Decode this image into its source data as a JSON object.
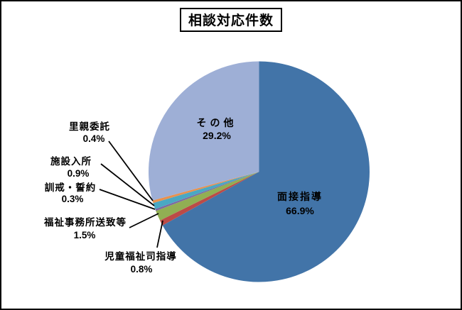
{
  "title": "相談対応件数",
  "chart_data": {
    "type": "pie",
    "title": "相談対応件数",
    "start_angle_deg": 0,
    "direction": "clockwise",
    "legend_position": "none",
    "background": "#ffffff",
    "border_color": "#000000",
    "segments": [
      {
        "label": "面接指導",
        "value": 66.9,
        "display": "66.9%",
        "color": "#4274A8",
        "label_placement": "inside"
      },
      {
        "label": "児童福祉司指導",
        "value": 0.8,
        "display": "0.8%",
        "color": "#BC4B47",
        "label_placement": "outside"
      },
      {
        "label": "福祉事務所送致等",
        "value": 1.5,
        "display": "1.5%",
        "color": "#91AF53",
        "label_placement": "outside"
      },
      {
        "label": "訓戒・誓約",
        "value": 0.3,
        "display": "0.3%",
        "color": "#7D68A2",
        "label_placement": "outside"
      },
      {
        "label": "施設入所",
        "value": 0.9,
        "display": "0.9%",
        "color": "#4AA8C3",
        "label_placement": "outside"
      },
      {
        "label": "里親委託",
        "value": 0.4,
        "display": "0.4%",
        "color": "#E8914E",
        "label_placement": "outside"
      },
      {
        "label": "その他",
        "value": 29.2,
        "display": "29.2%",
        "color": "#9EAFD6",
        "label_placement": "inside"
      }
    ]
  }
}
